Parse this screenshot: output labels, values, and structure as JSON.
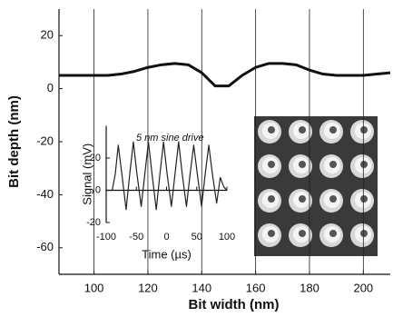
{
  "chart_data": [
    {
      "type": "line",
      "xlabel": "Bit width (nm)",
      "ylabel": "Bit depth (nm)",
      "x": [
        87,
        95,
        100,
        105,
        110,
        115,
        120,
        125,
        130,
        135,
        140,
        145,
        150,
        155,
        160,
        165,
        170,
        175,
        180,
        185,
        190,
        195,
        200,
        205,
        210
      ],
      "series": [
        {
          "color": "#111111",
          "values": [
            5,
            5,
            5,
            5,
            5.5,
            6.5,
            8,
            9,
            9.5,
            9,
            6,
            1,
            1,
            5,
            8,
            9.5,
            9.5,
            9,
            7,
            5.5,
            5,
            5,
            5,
            5.5,
            6
          ]
        }
      ],
      "xlim": [
        87,
        210
      ],
      "ylim": [
        -70,
        30
      ],
      "xticks": [
        100,
        120,
        140,
        160,
        180,
        200
      ],
      "yticks": [
        -60,
        -40,
        -20,
        0,
        20
      ],
      "grid": "x"
    },
    {
      "type": "line",
      "title": "5 nm sine drive",
      "xlabel": "Time (µs)",
      "ylabel": "Signal (mV)",
      "x": [
        -100,
        -90,
        -85,
        -80,
        -74,
        -67,
        -61,
        -55,
        -49,
        -42,
        -36,
        -30,
        -24,
        -17,
        -11,
        -5,
        1,
        8,
        14,
        20,
        26,
        33,
        39,
        45,
        51,
        58,
        64,
        70,
        76,
        83,
        89,
        95,
        100
      ],
      "series": [
        {
          "color": "#222222",
          "values": [
            0,
            0,
            10,
            28,
            10,
            -12,
            10,
            30,
            10,
            -10,
            10,
            30,
            10,
            -12,
            10,
            30,
            10,
            -10,
            10,
            30,
            10,
            -10,
            10,
            28,
            10,
            -10,
            10,
            28,
            10,
            -8,
            8,
            2,
            0
          ]
        }
      ],
      "xlim": [
        -100,
        100
      ],
      "ylim": [
        -20,
        40
      ],
      "xticks": [
        -100,
        -50,
        0,
        50,
        100
      ],
      "yticks": [
        -20,
        0,
        20
      ]
    }
  ]
}
